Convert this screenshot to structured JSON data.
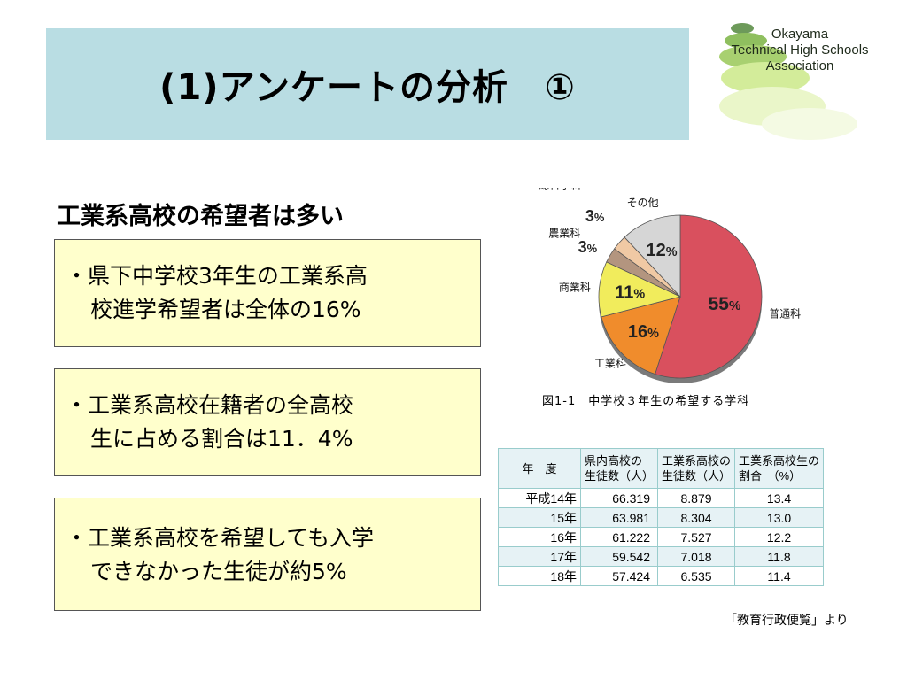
{
  "slide": {
    "title": "(1)アンケートの分析　①",
    "logo": [
      "Okayama",
      "Technical High Schools",
      "Association"
    ],
    "subtitle": "工業系高校の希望者は多い"
  },
  "boxes": [
    {
      "line1": "・県下中学校3年生の工業系高",
      "line2": "校進学希望者は全体の16%"
    },
    {
      "line1": "・工業系高校在籍者の全高校",
      "line2": "生に占める割合は11．4%"
    },
    {
      "line1": "・工業系高校を希望しても入学",
      "line2": "できなかった生徒が約5%"
    }
  ],
  "chart_data": [
    {
      "type": "pie",
      "title": "図1-1　中学校３年生の希望する学科",
      "slices": [
        {
          "label": "普通科",
          "value": 55,
          "color": "#d9505e"
        },
        {
          "label": "工業科",
          "value": 16,
          "color": "#f08c2c"
        },
        {
          "label": "商業科",
          "value": 11,
          "color": "#f1ec5c"
        },
        {
          "label": "農業科",
          "value": 3,
          "color": "#b3957f"
        },
        {
          "label": "総合学科",
          "value": 3,
          "color": "#f0c9a4"
        },
        {
          "label": "その他",
          "value": 12,
          "color": "#d6d6d6"
        }
      ],
      "unit": "%"
    },
    {
      "type": "table",
      "columns": [
        "年　度",
        "県内高校の生徒数（人）",
        "工業系高校の生徒数（人）",
        "工業系高校生の割合　（%）"
      ],
      "header_lines": [
        [
          "年　度"
        ],
        [
          "県内高校の",
          "生徒数（人）"
        ],
        [
          "工業系高校の",
          "生徒数（人）"
        ],
        [
          "工業系高校生の",
          "割合　（%）"
        ]
      ],
      "rows": [
        [
          "平成14年",
          "66.319",
          "8.879",
          "13.4"
        ],
        [
          "15年",
          "63.981",
          "8.304",
          "13.0"
        ],
        [
          "16年",
          "61.222",
          "7.527",
          "12.2"
        ],
        [
          "17年",
          "59.542",
          "7.018",
          "11.8"
        ],
        [
          "18年",
          "57.424",
          "6.535",
          "11.4"
        ]
      ],
      "source": "「教育行政便覧」より"
    }
  ]
}
